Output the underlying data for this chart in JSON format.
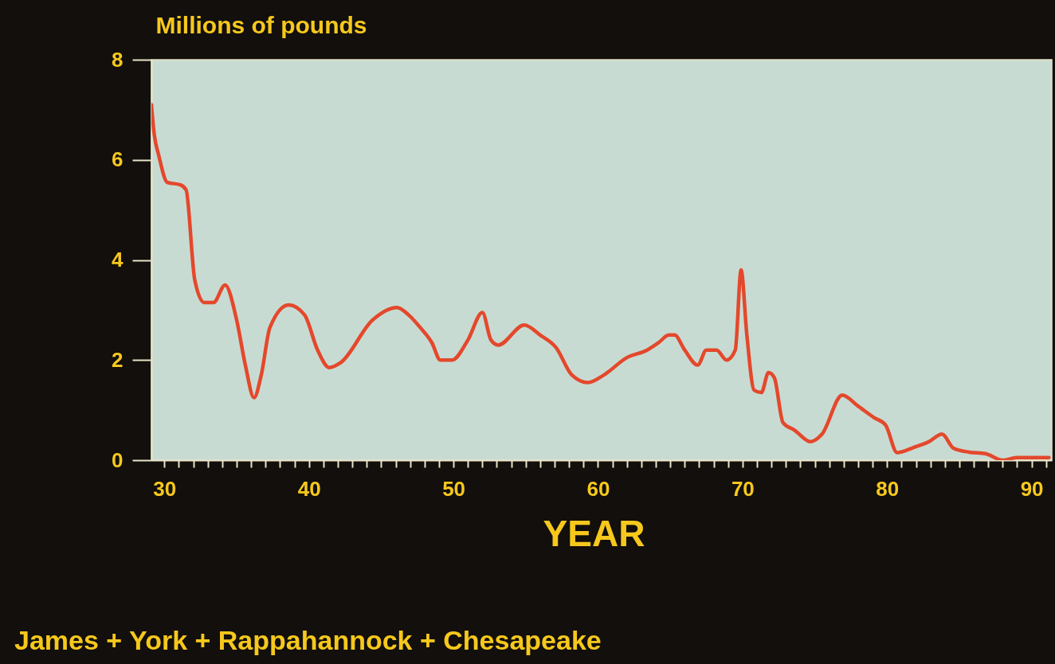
{
  "chart_data": {
    "type": "line",
    "ylabel": "Millions of pounds",
    "xlabel": "YEAR",
    "annotations": [
      "James + York + Rappahannock + Chesapeake"
    ],
    "x": [
      29.1,
      29.3,
      29.6,
      30.2,
      31.1,
      31.5,
      32.1,
      32.75,
      33.4,
      34.2,
      35.0,
      35.6,
      36.2,
      36.7,
      37.3,
      38.6,
      39.7,
      40.6,
      41.4,
      42.2,
      44.4,
      46.1,
      46.9,
      47.7,
      48.5,
      49.1,
      49.9,
      51.0,
      52.0,
      52.6,
      53.1,
      54.9,
      56.0,
      57.1,
      58.2,
      59.3,
      60.4,
      62.0,
      63.4,
      64.2,
      64.9,
      65.3,
      66.0,
      66.9,
      67.5,
      68.2,
      68.9,
      69.5,
      69.9,
      70.3,
      70.8,
      71.3,
      71.8,
      72.2,
      72.8,
      73.6,
      74.7,
      75.5,
      76.9,
      78.0,
      79.1,
      79.9,
      80.7,
      81.8,
      82.9,
      83.8,
      84.6,
      85.7,
      86.8,
      88.0,
      89.0,
      91.2
    ],
    "series": [
      {
        "color": "#e4482c",
        "values": [
          7.1,
          6.5,
          6.1,
          5.55,
          5.5,
          5.4,
          3.6,
          3.15,
          3.15,
          3.5,
          2.8,
          1.9,
          1.25,
          1.7,
          2.65,
          3.1,
          2.9,
          2.2,
          1.85,
          1.95,
          2.8,
          3.05,
          2.9,
          2.65,
          2.35,
          2.0,
          2.0,
          2.4,
          2.95,
          2.4,
          2.3,
          2.7,
          2.5,
          2.25,
          1.7,
          1.55,
          1.7,
          2.05,
          2.2,
          2.35,
          2.5,
          2.5,
          2.2,
          1.9,
          2.2,
          2.2,
          2.0,
          2.2,
          3.8,
          2.5,
          1.4,
          1.35,
          1.75,
          1.65,
          0.75,
          0.6,
          0.37,
          0.52,
          1.3,
          1.08,
          0.85,
          0.7,
          0.15,
          0.25,
          0.37,
          0.52,
          0.24,
          0.16,
          0.13,
          0.0,
          0.05,
          0.05
        ]
      }
    ],
    "xlim": [
      29.1,
      91.4
    ],
    "xticks": [
      30,
      {
        "value": 31,
        "label": null
      },
      {
        "value": 32,
        "label": null
      },
      {
        "value": 33,
        "label": null
      },
      {
        "value": 34,
        "label": null
      },
      {
        "value": 35,
        "label": null
      },
      {
        "value": 36,
        "label": null
      },
      {
        "value": 37,
        "label": null
      },
      {
        "value": 38,
        "label": null
      },
      {
        "value": 39,
        "label": null
      },
      40,
      {
        "value": 41,
        "label": null
      },
      {
        "value": 42,
        "label": null
      },
      {
        "value": 43,
        "label": null
      },
      {
        "value": 44,
        "label": null
      },
      {
        "value": 45,
        "label": null
      },
      {
        "value": 46,
        "label": null
      },
      {
        "value": 47,
        "label": null
      },
      {
        "value": 48,
        "label": null
      },
      {
        "value": 49,
        "label": null
      },
      50,
      {
        "value": 51,
        "label": null
      },
      {
        "value": 52,
        "label": null
      },
      {
        "value": 53,
        "label": null
      },
      {
        "value": 54,
        "label": null
      },
      {
        "value": 55,
        "label": null
      },
      {
        "value": 56,
        "label": null
      },
      {
        "value": 57,
        "label": null
      },
      {
        "value": 58,
        "label": null
      },
      {
        "value": 59,
        "label": null
      },
      60,
      {
        "value": 61,
        "label": null
      },
      {
        "value": 62,
        "label": null
      },
      {
        "value": 63,
        "label": null
      },
      {
        "value": 64,
        "label": null
      },
      {
        "value": 65,
        "label": null
      },
      {
        "value": 66,
        "label": null
      },
      {
        "value": 67,
        "label": null
      },
      {
        "value": 68,
        "label": null
      },
      {
        "value": 69,
        "label": null
      },
      70,
      {
        "value": 71,
        "label": null
      },
      {
        "value": 72,
        "label": null
      },
      {
        "value": 73,
        "label": null
      },
      {
        "value": 74,
        "label": null
      },
      {
        "value": 75,
        "label": null
      },
      {
        "value": 76,
        "label": null
      },
      {
        "value": 77,
        "label": null
      },
      {
        "value": 78,
        "label": null
      },
      {
        "value": 79,
        "label": null
      },
      80,
      {
        "value": 81,
        "label": null
      },
      {
        "value": 82,
        "label": null
      },
      {
        "value": 83,
        "label": null
      },
      {
        "value": 84,
        "label": null
      },
      {
        "value": 85,
        "label": null
      },
      {
        "value": 86,
        "label": null
      },
      {
        "value": 87,
        "label": null
      },
      {
        "value": 88,
        "label": null
      },
      {
        "value": 89,
        "label": null
      },
      90,
      {
        "value": 91,
        "label": null
      }
    ],
    "ylim": [
      0,
      8
    ],
    "yticks": [
      0,
      2,
      4,
      6,
      8
    ],
    "grid": false,
    "marker": "none",
    "line_style": "solid"
  }
}
